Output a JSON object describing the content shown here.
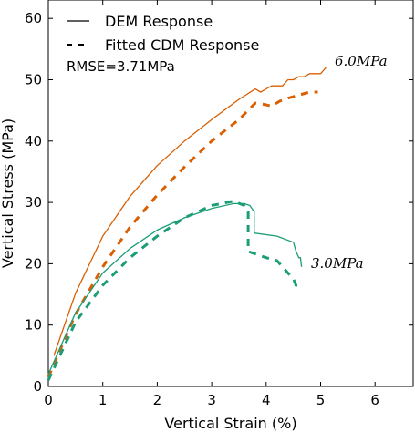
{
  "chart_data": {
    "type": "line",
    "xlabel": "Vertical Strain (%)",
    "ylabel": "Vertical Stress (MPa)",
    "xlim": [
      0,
      6.7
    ],
    "ylim": [
      0,
      63
    ],
    "xticks": [
      "0",
      "1",
      "2",
      "3",
      "4",
      "5",
      "6"
    ],
    "yticks": [
      "0",
      "10",
      "20",
      "30",
      "40",
      "50",
      "60"
    ],
    "grid": false,
    "legend_position": "top-left",
    "legend": {
      "dem_label": "DEM Response",
      "cdm_label": "Fitted CDM Response",
      "rmse_label": "RMSE=3.71MPa"
    },
    "annotations": {
      "high": "6.0MPa",
      "low": "3.0MPa"
    },
    "colors": {
      "high": "#d95f02",
      "low": "#1b9e77"
    },
    "series": [
      {
        "name": "DEM Response 6.0MPa",
        "style": "solid",
        "color": "#d95f02",
        "x": [
          0.1,
          0.5,
          1.0,
          1.5,
          2.0,
          2.5,
          3.0,
          3.5,
          3.8,
          3.9,
          4.0,
          4.1,
          4.3,
          4.4,
          4.5,
          4.6,
          4.7,
          4.8,
          4.9,
          5.0,
          5.1
        ],
        "y": [
          5.0,
          15.2,
          24.5,
          31.0,
          36.0,
          40.0,
          43.5,
          46.8,
          48.5,
          48.0,
          48.5,
          49.0,
          49.0,
          50.0,
          50.0,
          50.5,
          50.5,
          51.0,
          51.0,
          51.0,
          52.0
        ]
      },
      {
        "name": "Fitted CDM Response 6.0MPa",
        "style": "dashed",
        "color": "#d95f02",
        "x": [
          0.0,
          0.5,
          1.0,
          1.5,
          2.0,
          2.5,
          3.0,
          3.5,
          3.8,
          3.95,
          4.1,
          4.25,
          4.4,
          4.6,
          4.8,
          4.95
        ],
        "y": [
          1.5,
          11.8,
          19.5,
          26.0,
          31.2,
          35.8,
          40.0,
          43.5,
          46.2,
          46.0,
          45.7,
          46.5,
          47.0,
          47.5,
          48.0,
          48.0
        ]
      },
      {
        "name": "DEM Response 3.0MPa",
        "style": "solid",
        "color": "#1b9e77",
        "x": [
          0.0,
          0.5,
          1.0,
          1.5,
          2.0,
          2.5,
          3.0,
          3.4,
          3.6,
          3.7,
          3.78,
          3.78,
          4.2,
          4.5,
          4.55,
          4.6,
          4.63,
          4.65
        ],
        "y": [
          2.0,
          12.0,
          18.5,
          22.5,
          25.5,
          27.5,
          29.0,
          29.8,
          29.8,
          29.5,
          28.5,
          25.0,
          24.5,
          23.5,
          22.0,
          21.0,
          21.0,
          19.5
        ],
        "connect_step": true
      },
      {
        "name": "Fitted CDM Response 3.0MPa",
        "style": "dashed",
        "color": "#1b9e77",
        "x": [
          0.0,
          0.5,
          1.0,
          1.5,
          2.0,
          2.5,
          3.0,
          3.4,
          3.6,
          3.67,
          3.67,
          4.0,
          4.2,
          4.3,
          4.4,
          4.5,
          4.55,
          4.5
        ],
        "y": [
          1.0,
          10.5,
          16.5,
          21.0,
          24.5,
          27.5,
          29.5,
          30.2,
          29.5,
          28.5,
          22.0,
          21.0,
          20.5,
          19.5,
          18.5,
          17.5,
          16.5,
          15.5
        ]
      }
    ]
  }
}
